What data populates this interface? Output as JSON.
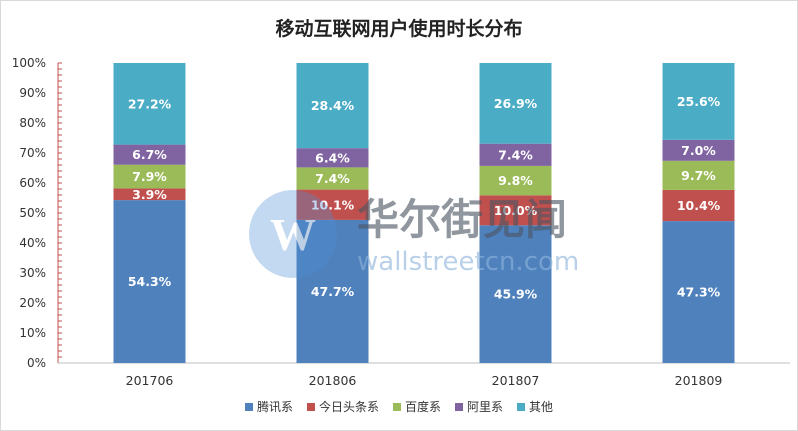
{
  "chart_data": {
    "type": "bar",
    "stacked": true,
    "title": "移动互联网用户使用时长分布",
    "categories": [
      "201706",
      "201806",
      "201807",
      "201809"
    ],
    "ylim": [
      0,
      100
    ],
    "yticks": [
      "0%",
      "10%",
      "20%",
      "30%",
      "40%",
      "50%",
      "60%",
      "70%",
      "80%",
      "90%",
      "100%"
    ],
    "grid": false,
    "legend_position": "bottom",
    "series": [
      {
        "name": "腾讯系",
        "color": "#4f81bd",
        "values": [
          54.3,
          47.7,
          45.9,
          47.3
        ],
        "labels": [
          "54.3%",
          "47.7%",
          "45.9%",
          "47.3%"
        ]
      },
      {
        "name": "今日头条系",
        "color": "#c0504d",
        "values": [
          3.9,
          10.1,
          10.0,
          10.4
        ],
        "labels": [
          "3.9%",
          "10.1%",
          "10.0%",
          "10.4%"
        ]
      },
      {
        "name": "百度系",
        "color": "#9bbb59",
        "values": [
          7.9,
          7.4,
          9.8,
          9.7
        ],
        "labels": [
          "7.9%",
          "7.4%",
          "9.8%",
          "9.7%"
        ]
      },
      {
        "name": "阿里系",
        "color": "#8064a2",
        "values": [
          6.7,
          6.4,
          7.4,
          7.0
        ],
        "labels": [
          "6.7%",
          "6.4%",
          "7.4%",
          "7.0%"
        ]
      },
      {
        "name": "其他",
        "color": "#4bacc6",
        "values": [
          27.2,
          28.4,
          26.9,
          25.6
        ],
        "labels": [
          "27.2%",
          "28.4%",
          "26.9%",
          "25.6%"
        ]
      }
    ]
  },
  "watermark": {
    "brand_cn": "华尔街见闻",
    "brand_url": "wallstreetcn.com",
    "logo_letter": "W",
    "color": "#4f8fd6"
  }
}
